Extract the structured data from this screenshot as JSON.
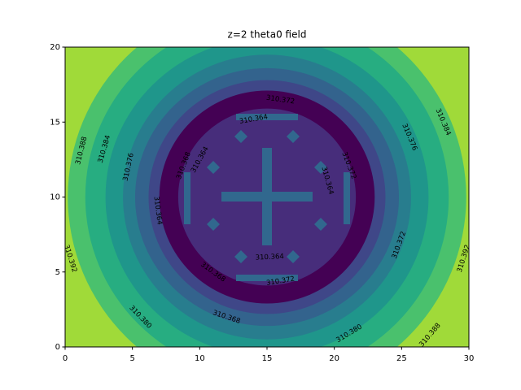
{
  "chart_data": {
    "type": "contourf",
    "title": "z=2 theta0 field",
    "xlim": [
      0,
      30
    ],
    "ylim": [
      0,
      20
    ],
    "xticks": [
      0,
      5,
      10,
      15,
      20,
      25,
      30
    ],
    "yticks": [
      0,
      5,
      10,
      15,
      20
    ],
    "background_color": "#a0da39",
    "center": [
      15,
      10
    ],
    "contours": [
      {
        "level": 310.392,
        "rx": 14.8,
        "ry": 13.2,
        "color": "#4ac16d"
      },
      {
        "level": 310.388,
        "rx": 13.5,
        "ry": 12.0,
        "color": "#27ad81"
      },
      {
        "level": 310.384,
        "rx": 12.0,
        "ry": 10.6,
        "color": "#1f968b"
      },
      {
        "level": 310.38,
        "rx": 10.7,
        "ry": 9.5,
        "color": "#287d8e"
      },
      {
        "level": 310.376,
        "rx": 9.8,
        "ry": 8.6,
        "color": "#33638d"
      },
      {
        "level": 310.372,
        "rx": 8.8,
        "ry": 7.8,
        "color": "#3f4788"
      },
      {
        "level": 310.368,
        "rx": 8.0,
        "ry": 7.1,
        "color": "#440154"
      },
      {
        "level": 310.364,
        "rx": 6.6,
        "ry": 5.9,
        "color": "#472d7b"
      }
    ],
    "contour_labels": [
      {
        "value": 310.372,
        "x": 16.0,
        "y": 16.5
      },
      {
        "value": 310.364,
        "x": 14.0,
        "y": 15.2
      },
      {
        "value": 310.364,
        "x": 10.0,
        "y": 12.5
      },
      {
        "value": 310.368,
        "x": 8.8,
        "y": 12.1
      },
      {
        "value": 310.388,
        "x": 1.2,
        "y": 13.1
      },
      {
        "value": 310.384,
        "x": 2.9,
        "y": 13.2
      },
      {
        "value": 310.376,
        "x": 4.7,
        "y": 12.0
      },
      {
        "value": 310.364,
        "x": 6.9,
        "y": 9.1
      },
      {
        "value": 310.372,
        "x": 21.1,
        "y": 12.1
      },
      {
        "value": 310.364,
        "x": 19.5,
        "y": 11.1
      },
      {
        "value": 310.376,
        "x": 25.6,
        "y": 14.0
      },
      {
        "value": 310.384,
        "x": 28.1,
        "y": 15.0
      },
      {
        "value": 310.372,
        "x": 24.8,
        "y": 6.8
      },
      {
        "value": 310.364,
        "x": 15.2,
        "y": 6.0
      },
      {
        "value": 310.372,
        "x": 16.0,
        "y": 4.4
      },
      {
        "value": 310.368,
        "x": 11.0,
        "y": 5.0
      },
      {
        "value": 310.368,
        "x": 12.0,
        "y": 2.0
      },
      {
        "value": 310.38,
        "label": "310.380",
        "x": 5.6,
        "y": 2.0
      },
      {
        "value": 310.38,
        "label": "310.380",
        "x": 21.1,
        "y": 0.9
      },
      {
        "value": 310.388,
        "x": 27.1,
        "y": 0.8
      },
      {
        "value": 310.392,
        "x": 0.4,
        "y": 5.9
      },
      {
        "value": 310.392,
        "x": 29.6,
        "y": 5.9
      }
    ]
  }
}
